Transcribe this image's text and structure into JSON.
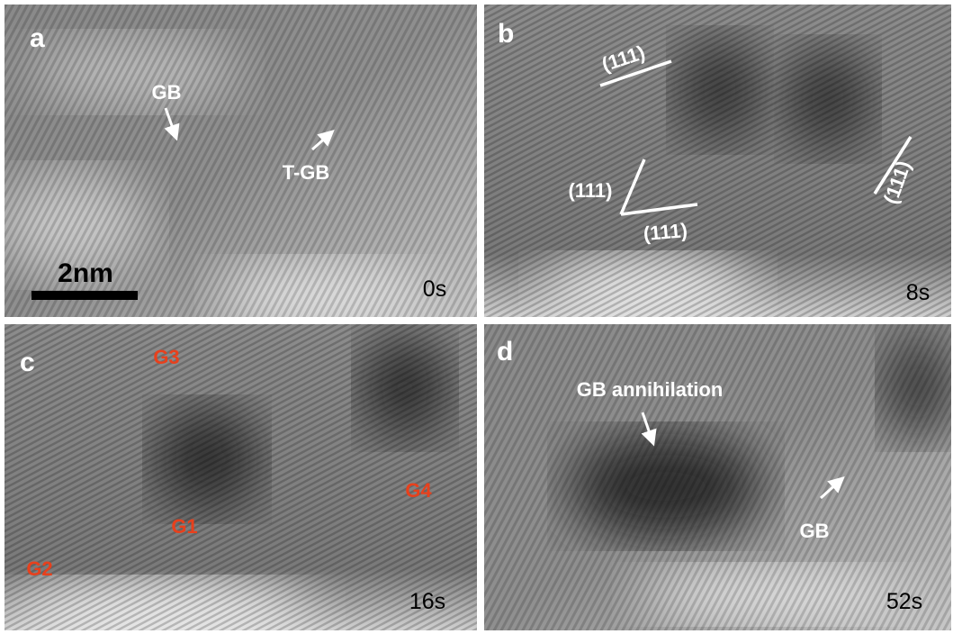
{
  "panels": [
    {
      "letter": "a",
      "annotations": [
        "GB",
        "T-GB"
      ],
      "scale_bar": "2nm",
      "time": "0s"
    },
    {
      "letter": "b",
      "annotations": [
        "(111)",
        "(111)",
        "(111)",
        "(111)"
      ],
      "time": "8s"
    },
    {
      "letter": "c",
      "annotations": [
        "G3",
        "G1",
        "G2",
        "G4"
      ],
      "time": "16s"
    },
    {
      "letter": "d",
      "annotations": [
        "GB annihilation",
        "GB"
      ],
      "time": "52s"
    }
  ]
}
